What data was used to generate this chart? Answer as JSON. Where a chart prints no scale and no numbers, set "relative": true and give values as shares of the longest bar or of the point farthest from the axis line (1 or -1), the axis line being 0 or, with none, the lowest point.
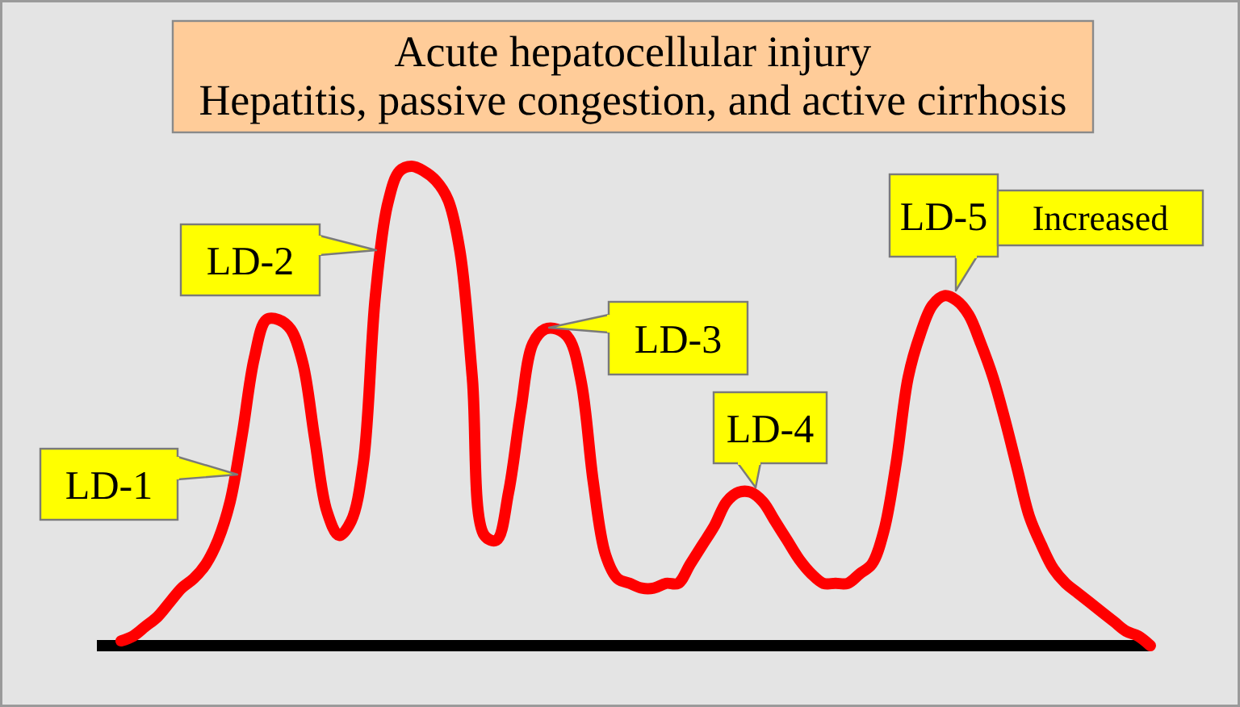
{
  "chart_data": {
    "type": "line",
    "title": "Acute hepatocellular injury",
    "subtitle": "Hepatitis, passive congestion, and active cirrhosis",
    "relative": true,
    "categories": [
      null,
      null,
      null,
      null,
      null,
      null,
      null,
      null,
      null,
      null,
      null,
      null,
      null,
      null,
      null,
      null,
      null,
      null,
      null,
      null,
      null,
      null,
      null,
      null,
      null,
      null,
      null,
      null,
      null,
      null,
      null,
      null,
      null,
      null,
      null,
      null,
      null,
      null,
      null,
      null,
      null,
      null,
      null,
      null,
      null,
      null,
      null,
      null,
      null,
      null,
      null,
      null,
      null,
      null,
      null,
      null,
      null,
      null,
      null,
      null,
      null,
      null,
      null,
      null,
      null,
      null,
      null,
      null,
      null,
      null,
      null,
      null,
      null,
      null,
      null,
      null,
      null,
      null,
      null,
      null,
      null,
      null,
      null,
      null,
      null,
      null
    ],
    "series": [
      {
        "color": "#ff0000",
        "values": [
          0.01,
          0.02,
          0.04,
          0.06,
          0.09,
          0.12,
          0.14,
          0.17,
          0.22,
          0.3,
          0.44,
          0.6,
          0.68,
          0.68,
          0.66,
          0.59,
          0.43,
          0.28,
          0.23,
          0.26,
          0.38,
          0.73,
          0.92,
          0.99,
          1,
          0.99,
          0.97,
          0.93,
          0.82,
          0.56,
          0.23,
          0.22,
          0.32,
          0.49,
          0.63,
          0.66,
          0.66,
          0.64,
          0.55,
          0.34,
          0.19,
          0.14,
          0.13,
          0.12,
          0.12,
          0.13,
          0.13,
          0.17,
          0.21,
          0.25,
          0.3,
          0.32,
          0.32,
          0.3,
          0.26,
          0.22,
          0.18,
          0.15,
          0.13,
          0.13,
          0.13,
          0.15,
          0.17,
          0.24,
          0.38,
          0.56,
          0.65,
          0.71,
          0.73,
          0.72,
          0.69,
          0.63,
          0.56,
          0.47,
          0.37,
          0.27,
          0.21,
          0.16,
          0.13,
          0.11,
          0.09,
          0.07,
          0.05,
          0.03,
          0.02,
          0
        ]
      }
    ],
    "annotations": [
      "LD-1",
      "LD-2",
      "LD-3",
      "LD-4",
      "LD-5",
      "Increased"
    ]
  }
}
